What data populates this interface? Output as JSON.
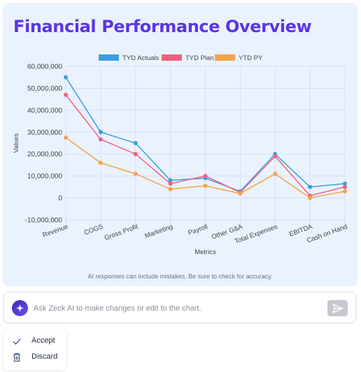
{
  "chart_title": "Financial Performance Overview",
  "disclaimer": "AI responses can include mistakes. Be sure to check for accuracy.",
  "prompt": {
    "placeholder": "Ask Zeck AI to make changes or edit to the chart."
  },
  "actions": {
    "accept": "Accept",
    "discard": "Discard"
  },
  "icons": {
    "ai": "ai-sparkle-icon",
    "send": "send-icon",
    "accept": "check-icon",
    "discard": "trash-icon"
  },
  "colors": {
    "title": "#5b35e6",
    "card_bg": "#eaf2fe"
  },
  "chart_data": {
    "type": "line",
    "title": "Financial Performance Overview",
    "xlabel": "Metrics",
    "ylabel": "Values",
    "categories": [
      "Revenue",
      "COGS",
      "Gross Profit",
      "Marketing",
      "Payroll",
      "Other G&A",
      "Total Expenses",
      "EBITDA",
      "Cash on Hand"
    ],
    "ylim": [
      -10000000,
      60000000
    ],
    "yticks": [
      -10000000,
      0,
      10000000,
      20000000,
      30000000,
      40000000,
      50000000,
      60000000
    ],
    "ytick_labels": [
      "-10,000,000",
      "0",
      "10,000,000",
      "20,000,000",
      "30,000,000",
      "40,000,000",
      "50,000,000",
      "60,000,000"
    ],
    "grid": true,
    "legend_position": "top-center",
    "series": [
      {
        "name": "TYD Actuals",
        "color": "#3a9fe0",
        "values": [
          55000000,
          30000000,
          25000000,
          8000000,
          9000000,
          3000000,
          20000000,
          5000000,
          6500000
        ]
      },
      {
        "name": "TYD Plan",
        "color": "#f15f7f",
        "values": [
          47000000,
          26700000,
          20000000,
          6500000,
          10000000,
          2500000,
          19000000,
          1000000,
          5000000
        ]
      },
      {
        "name": "YTD PY",
        "color": "#f5a24a",
        "values": [
          27500000,
          16000000,
          11000000,
          4000000,
          5500000,
          2000000,
          11000000,
          0,
          3000000
        ]
      }
    ]
  }
}
